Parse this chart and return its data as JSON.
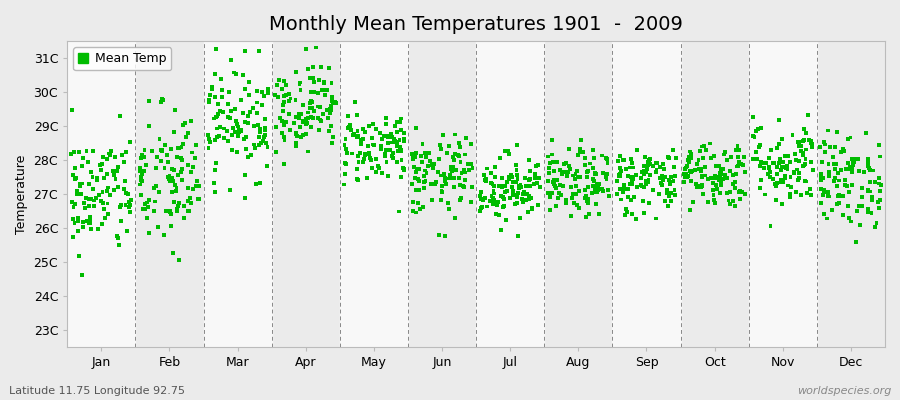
{
  "title": "Monthly Mean Temperatures 1901  -  2009",
  "ylabel": "Temperature",
  "xlabel": "",
  "ytick_labels": [
    "23C",
    "24C",
    "25C",
    "26C",
    "27C",
    "28C",
    "29C",
    "30C",
    "31C"
  ],
  "ytick_values": [
    23,
    24,
    25,
    26,
    27,
    28,
    29,
    30,
    31
  ],
  "ylim": [
    22.5,
    31.5
  ],
  "month_labels": [
    "Jan",
    "Feb",
    "Mar",
    "Apr",
    "May",
    "Jun",
    "Jul",
    "Aug",
    "Sep",
    "Oct",
    "Nov",
    "Dec"
  ],
  "month_centers": [
    0.5,
    1.5,
    2.5,
    3.5,
    4.5,
    5.5,
    6.5,
    7.5,
    8.5,
    9.5,
    10.5,
    11.5
  ],
  "xlim": [
    0,
    12
  ],
  "bg_color": "#ebebeb",
  "alt_band_color": "#f8f8f8",
  "marker_color": "#00bb00",
  "marker": "s",
  "marker_size": 2,
  "legend_label": "Mean Temp",
  "bottom_left_text": "Latitude 11.75 Longitude 92.75",
  "bottom_right_text": "worldspecies.org",
  "title_fontsize": 14,
  "label_fontsize": 9,
  "tick_fontsize": 9,
  "monthly_means": [
    27.0,
    27.4,
    29.2,
    29.6,
    28.4,
    27.5,
    27.2,
    27.3,
    27.4,
    27.6,
    27.9,
    27.4
  ],
  "monthly_stds": [
    0.9,
    1.1,
    0.85,
    0.65,
    0.55,
    0.6,
    0.5,
    0.5,
    0.5,
    0.5,
    0.65,
    0.7
  ],
  "n_years": 109,
  "seed": 42
}
